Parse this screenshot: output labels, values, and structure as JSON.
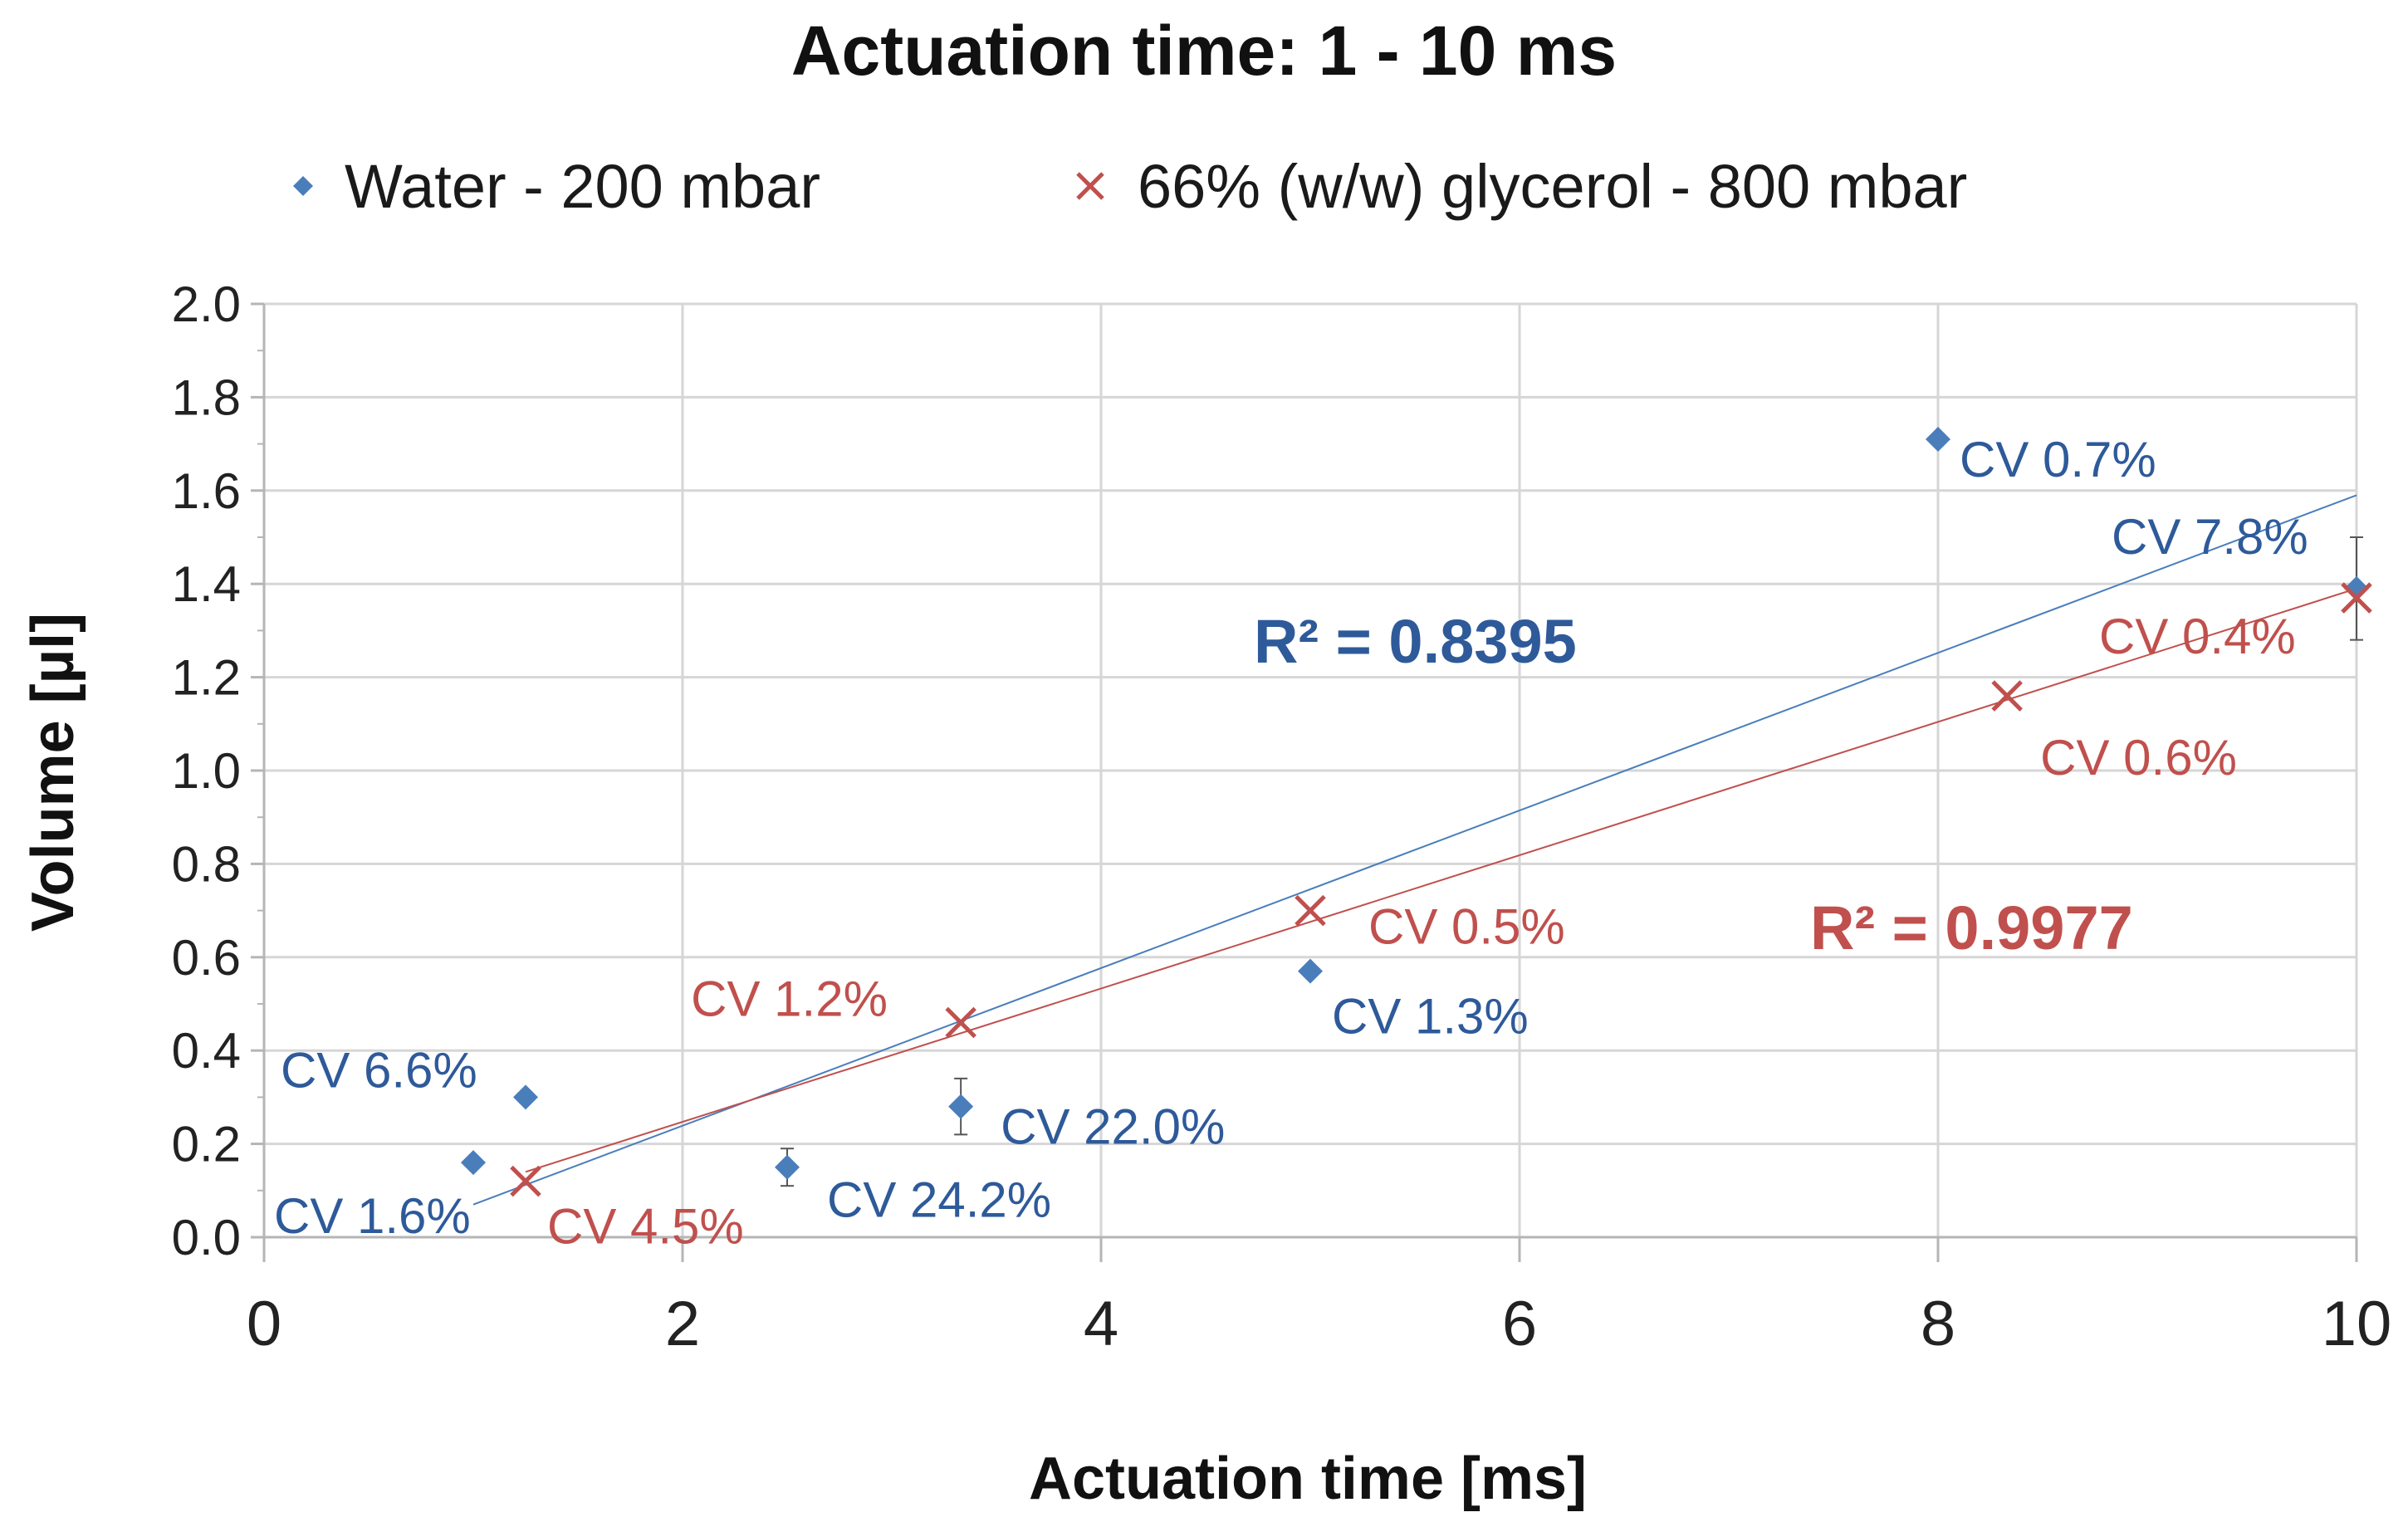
{
  "chart_data": {
    "type": "scatter",
    "title": "Actuation time: 1 - 10 ms",
    "xlabel": "Actuation time [ms]",
    "ylabel": "Volume [µl]",
    "xlim": [
      0,
      10
    ],
    "ylim": [
      0,
      2.0
    ],
    "x_ticks": [
      "0",
      "2",
      "4",
      "6",
      "8",
      "10"
    ],
    "y_ticks": [
      "0.0",
      "0.2",
      "0.4",
      "0.6",
      "0.8",
      "1.0",
      "1.2",
      "1.4",
      "1.6",
      "1.8",
      "2.0"
    ],
    "grid": true,
    "legend_position": "top",
    "series": [
      {
        "name": "Water - 200 mbar",
        "marker": "diamond",
        "color": "#4a7ebb",
        "label_color": "#2e5a9a",
        "points": [
          {
            "x": 1.0,
            "y": 0.16,
            "err": 0.0,
            "label": "CV 1.6%"
          },
          {
            "x": 1.25,
            "y": 0.3,
            "err": 0.0,
            "label": "CV 6.6%"
          },
          {
            "x": 2.5,
            "y": 0.15,
            "err": 0.04,
            "label": "CV 24.2%"
          },
          {
            "x": 3.33,
            "y": 0.28,
            "err": 0.06,
            "label": "CV 22.0%"
          },
          {
            "x": 5.0,
            "y": 0.57,
            "err": 0.0,
            "label": "CV 1.3%"
          },
          {
            "x": 8.0,
            "y": 1.71,
            "err": 0.0,
            "label": "CV 0.7%"
          },
          {
            "x": 10.0,
            "y": 1.39,
            "err": 0.11,
            "label": "CV 7.8%"
          }
        ],
        "trendline": {
          "from": [
            1.0,
            0.07
          ],
          "to": [
            10.0,
            1.59
          ]
        },
        "r_squared_label": "R² = 0.8395"
      },
      {
        "name": "66% (w/w) glycerol - 800 mbar",
        "marker": "x",
        "color": "#c0504d",
        "label_color": "#c0504d",
        "points": [
          {
            "x": 1.25,
            "y": 0.12,
            "err": 0.0,
            "label": "CV 4.5%"
          },
          {
            "x": 3.33,
            "y": 0.46,
            "err": 0.0,
            "label": "CV 1.2%"
          },
          {
            "x": 5.0,
            "y": 0.7,
            "err": 0.0,
            "label": "CV 0.5%"
          },
          {
            "x": 8.33,
            "y": 1.16,
            "err": 0.0,
            "label": "CV 0.6%"
          },
          {
            "x": 10.0,
            "y": 1.37,
            "err": 0.0,
            "label": "CV 0.4%"
          }
        ],
        "trendline": {
          "from": [
            1.25,
            0.14
          ],
          "to": [
            10.0,
            1.39
          ]
        },
        "r_squared_label": "R² = 0.9977"
      }
    ]
  }
}
